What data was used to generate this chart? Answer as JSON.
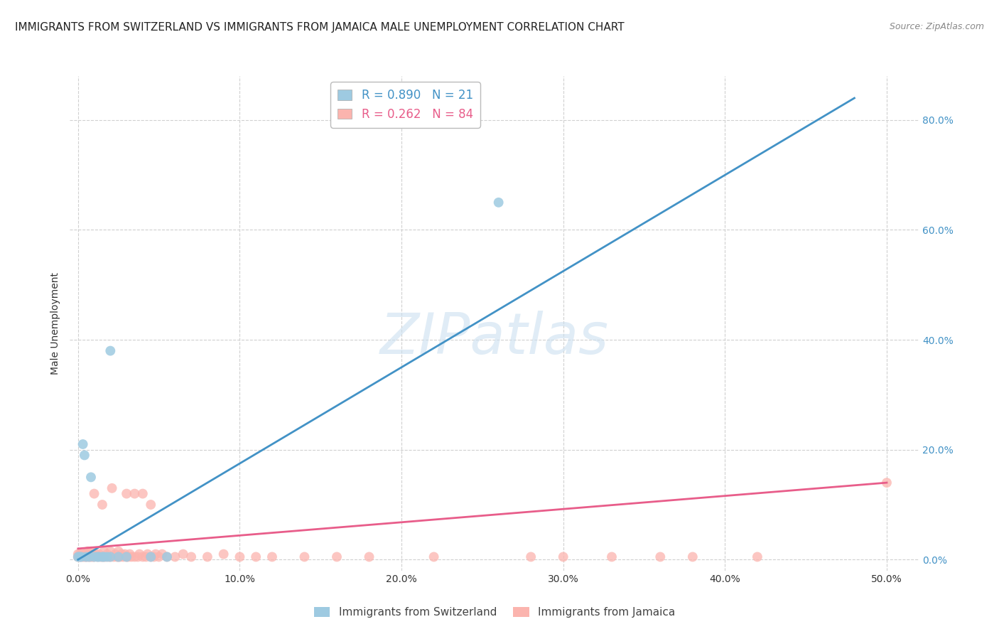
{
  "title": "IMMIGRANTS FROM SWITZERLAND VS IMMIGRANTS FROM JAMAICA MALE UNEMPLOYMENT CORRELATION CHART",
  "source": "Source: ZipAtlas.com",
  "xlabel_ticks": [
    "0.0%",
    "10.0%",
    "20.0%",
    "30.0%",
    "40.0%",
    "50.0%"
  ],
  "xlabel_vals": [
    0.0,
    0.1,
    0.2,
    0.3,
    0.4,
    0.5
  ],
  "ylabel_ticks": [
    "0.0%",
    "20.0%",
    "40.0%",
    "60.0%",
    "80.0%"
  ],
  "ylabel_vals": [
    0.0,
    0.2,
    0.4,
    0.6,
    0.8
  ],
  "ylabel_label": "Male Unemployment",
  "xlim": [
    -0.005,
    0.52
  ],
  "ylim": [
    -0.02,
    0.88
  ],
  "swiss_color": "#9ecae1",
  "jamaica_color": "#fbb4ae",
  "swiss_line_color": "#4292c6",
  "jamaica_line_color": "#e85d8a",
  "legend_label_swiss": "R = 0.890   N = 21",
  "legend_label_jamaica": "R = 0.262   N = 84",
  "legend_label_swiss2": "Immigrants from Switzerland",
  "legend_label_jamaica2": "Immigrants from Jamaica",
  "swiss_x": [
    0.0,
    0.001,
    0.002,
    0.003,
    0.004,
    0.005,
    0.007,
    0.008,
    0.01,
    0.012,
    0.013,
    0.015,
    0.016,
    0.018,
    0.02,
    0.02,
    0.025,
    0.03,
    0.045,
    0.055,
    0.26
  ],
  "swiss_y": [
    0.005,
    0.005,
    0.005,
    0.21,
    0.19,
    0.005,
    0.005,
    0.15,
    0.005,
    0.005,
    0.005,
    0.005,
    0.005,
    0.005,
    0.38,
    0.005,
    0.005,
    0.005,
    0.005,
    0.005,
    0.65
  ],
  "jamaica_x": [
    0.0,
    0.0,
    0.001,
    0.001,
    0.002,
    0.002,
    0.003,
    0.003,
    0.004,
    0.004,
    0.005,
    0.005,
    0.006,
    0.006,
    0.007,
    0.007,
    0.008,
    0.008,
    0.009,
    0.009,
    0.01,
    0.01,
    0.011,
    0.012,
    0.013,
    0.014,
    0.015,
    0.015,
    0.016,
    0.016,
    0.017,
    0.018,
    0.019,
    0.02,
    0.02,
    0.021,
    0.022,
    0.023,
    0.024,
    0.025,
    0.025,
    0.026,
    0.027,
    0.028,
    0.029,
    0.03,
    0.03,
    0.031,
    0.032,
    0.033,
    0.035,
    0.035,
    0.037,
    0.038,
    0.04,
    0.04,
    0.042,
    0.043,
    0.045,
    0.045,
    0.047,
    0.048,
    0.05,
    0.052,
    0.055,
    0.06,
    0.065,
    0.07,
    0.08,
    0.09,
    0.1,
    0.11,
    0.12,
    0.14,
    0.16,
    0.18,
    0.22,
    0.28,
    0.3,
    0.33,
    0.36,
    0.38,
    0.42,
    0.5
  ],
  "jamaica_y": [
    0.005,
    0.01,
    0.005,
    0.01,
    0.005,
    0.01,
    0.005,
    0.01,
    0.005,
    0.01,
    0.005,
    0.01,
    0.005,
    0.015,
    0.005,
    0.01,
    0.005,
    0.015,
    0.005,
    0.01,
    0.005,
    0.12,
    0.01,
    0.005,
    0.01,
    0.005,
    0.005,
    0.1,
    0.005,
    0.015,
    0.005,
    0.01,
    0.005,
    0.005,
    0.015,
    0.13,
    0.005,
    0.01,
    0.005,
    0.005,
    0.015,
    0.005,
    0.01,
    0.005,
    0.01,
    0.005,
    0.12,
    0.005,
    0.01,
    0.005,
    0.005,
    0.12,
    0.005,
    0.01,
    0.005,
    0.12,
    0.005,
    0.01,
    0.005,
    0.1,
    0.005,
    0.01,
    0.005,
    0.01,
    0.005,
    0.005,
    0.01,
    0.005,
    0.005,
    0.01,
    0.005,
    0.005,
    0.005,
    0.005,
    0.005,
    0.005,
    0.005,
    0.005,
    0.005,
    0.005,
    0.005,
    0.005,
    0.005,
    0.14
  ],
  "swiss_trend_x": [
    0.0,
    0.48
  ],
  "swiss_trend_y": [
    0.0,
    0.84
  ],
  "jamaica_trend_x": [
    0.0,
    0.5
  ],
  "jamaica_trend_y": [
    0.02,
    0.14
  ],
  "watermark": "ZIPatlas",
  "background_color": "#ffffff",
  "grid_color": "#d0d0d0",
  "title_fontsize": 11,
  "tick_fontsize": 10
}
